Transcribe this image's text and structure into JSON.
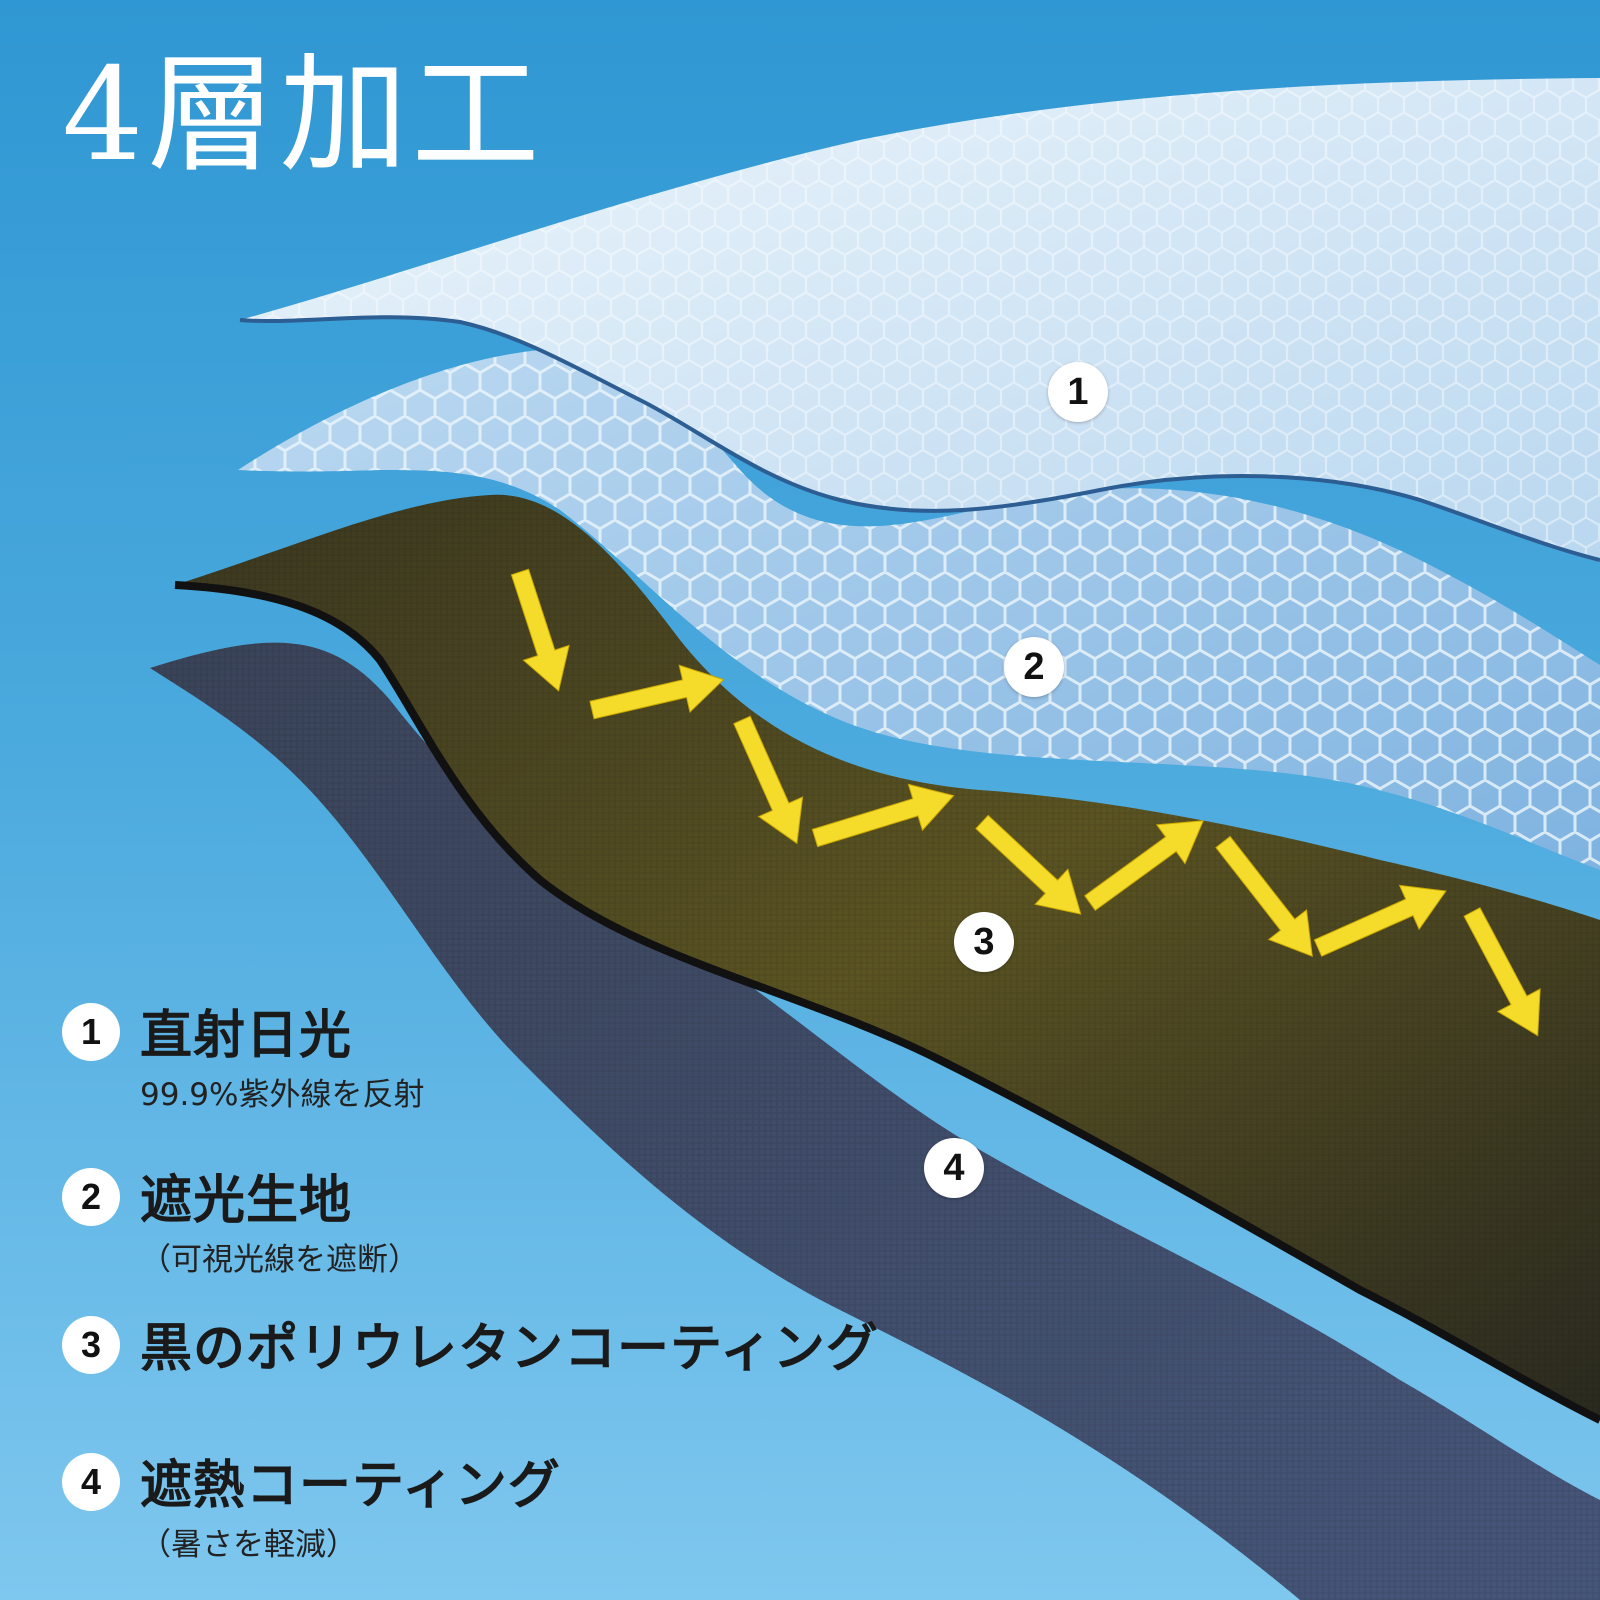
{
  "title": "4層加工",
  "layer_markers": [
    "1",
    "2",
    "3",
    "4"
  ],
  "legend": [
    {
      "number": "1",
      "title": "直射日光",
      "subtitle": "99.9%紫外線を反射"
    },
    {
      "number": "2",
      "title": "遮光生地",
      "subtitle": "（可視光線を遮断）"
    },
    {
      "number": "3",
      "title": "黒のポリウレタンコーティング",
      "subtitle": ""
    },
    {
      "number": "4",
      "title": "遮熱コーティング",
      "subtitle": "（暑さを軽減）"
    }
  ],
  "colors": {
    "background_top": "#2f97d3",
    "background_bottom": "#7ec7ef",
    "layer1": "#d6e9f8",
    "layer2": "#9cc6ea",
    "layer3": "#4a4522",
    "layer4": "#3c4a64",
    "arrows": "#f6dc2a",
    "title": "#ffffff"
  }
}
